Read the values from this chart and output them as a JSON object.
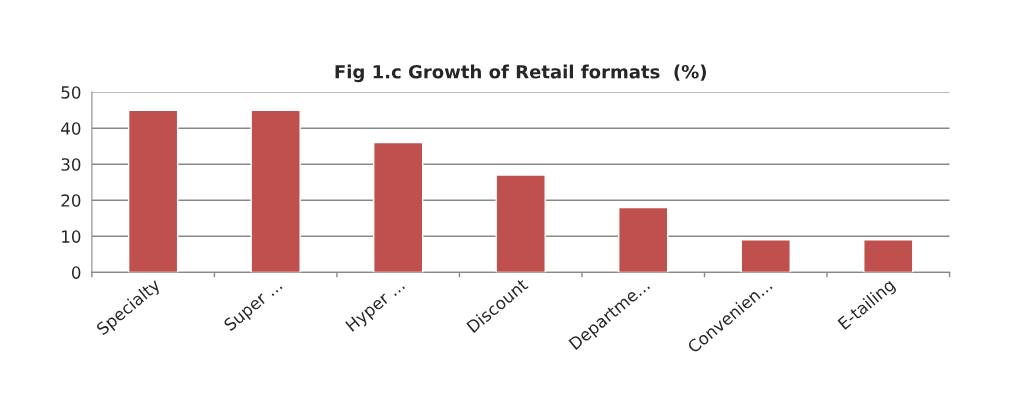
{
  "chart_data": {
    "type": "bar",
    "title": "Fig 1.c Growth of Retail formats  (%)",
    "categories": [
      "Specialty",
      "Super ...",
      "Hyper ...",
      "Discount",
      "Departme...",
      "Convenien...",
      "E-tailing"
    ],
    "values": [
      45,
      45,
      36,
      27,
      18,
      9,
      9
    ],
    "color": "#c0504d",
    "ylim": [
      0,
      50
    ],
    "yticks": [
      0,
      10,
      20,
      30,
      40,
      50
    ],
    "grid": "y",
    "legend": false
  }
}
